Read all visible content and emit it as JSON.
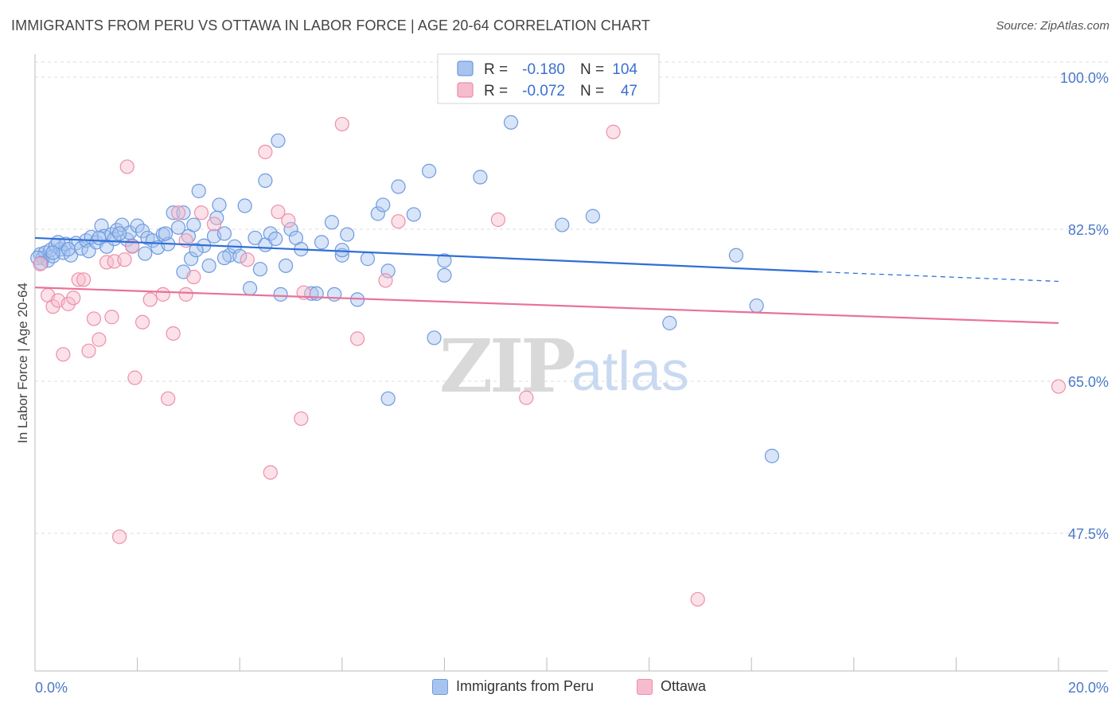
{
  "title": "IMMIGRANTS FROM PERU VS OTTAWA IN LABOR FORCE | AGE 20-64 CORRELATION CHART",
  "source": "Source: ZipAtlas.com",
  "watermark": {
    "zip": "ZIP",
    "atlas": "atlas"
  },
  "legend_box": [
    {
      "r_label": "R =",
      "r_value": "-0.180",
      "n_label": "N =",
      "n_value": "104"
    },
    {
      "r_label": "R =",
      "r_value": "-0.072",
      "n_label": "N =",
      "n_value": "47"
    }
  ],
  "bottom_legend": [
    "Immigrants from Peru",
    "Ottawa"
  ],
  "chart_data": {
    "type": "scatter",
    "ylabel": "In Labor Force | Age 20-64",
    "xlim": [
      0,
      20
    ],
    "ylim": [
      30,
      102
    ],
    "x_tick_labels": [
      {
        "value": 0,
        "label": "0.0%"
      },
      {
        "value": 20,
        "label": "20.0%"
      }
    ],
    "y_ticks": [
      {
        "value": 100,
        "label": "100.0%"
      },
      {
        "value": 82.5,
        "label": "82.5%"
      },
      {
        "value": 65,
        "label": "65.0%"
      },
      {
        "value": 47.5,
        "label": "47.5%"
      }
    ],
    "colors": {
      "blue_fill": "#a8c4ee",
      "blue_stroke": "#6d9be0",
      "blue_line": "#2f6fd6",
      "pink_fill": "#f6bccd",
      "pink_stroke": "#ee8fab",
      "pink_line": "#e8729a"
    },
    "series": [
      {
        "name": "Immigrants from Peru",
        "color": "#6d9be0",
        "trend": {
          "x": [
            0,
            15.3
          ],
          "y": [
            81.5,
            77.6
          ],
          "dash_to": [
            20,
            76.5
          ]
        },
        "points": [
          [
            0.1,
            79.6
          ],
          [
            0.15,
            79.2
          ],
          [
            0.2,
            79.8
          ],
          [
            0.25,
            78.9
          ],
          [
            0.3,
            80.1
          ],
          [
            0.35,
            79.4
          ],
          [
            0.4,
            80.6
          ],
          [
            0.5,
            80.2
          ],
          [
            0.55,
            79.8
          ],
          [
            0.6,
            80.8
          ],
          [
            0.7,
            79.5
          ],
          [
            0.8,
            80.9
          ],
          [
            0.9,
            80.3
          ],
          [
            1.0,
            81.2
          ],
          [
            1.05,
            80.0
          ],
          [
            1.1,
            81.6
          ],
          [
            1.2,
            81.0
          ],
          [
            1.3,
            82.9
          ],
          [
            1.35,
            81.7
          ],
          [
            1.4,
            80.5
          ],
          [
            1.5,
            81.9
          ],
          [
            1.55,
            81.4
          ],
          [
            1.6,
            82.4
          ],
          [
            1.7,
            83.0
          ],
          [
            1.8,
            81.3
          ],
          [
            1.85,
            82.1
          ],
          [
            1.9,
            80.6
          ],
          [
            2.0,
            82.9
          ],
          [
            2.1,
            82.3
          ],
          [
            2.2,
            81.5
          ],
          [
            2.3,
            81.2
          ],
          [
            2.4,
            80.4
          ],
          [
            2.5,
            81.9
          ],
          [
            2.6,
            80.8
          ],
          [
            2.7,
            84.4
          ],
          [
            2.8,
            82.7
          ],
          [
            2.9,
            77.6
          ],
          [
            3.0,
            81.7
          ],
          [
            3.05,
            79.1
          ],
          [
            3.1,
            83.0
          ],
          [
            3.2,
            86.9
          ],
          [
            3.3,
            80.6
          ],
          [
            3.4,
            78.3
          ],
          [
            3.5,
            81.7
          ],
          [
            3.6,
            85.3
          ],
          [
            3.7,
            82.0
          ],
          [
            3.8,
            79.5
          ],
          [
            3.9,
            80.5
          ],
          [
            4.0,
            79.4
          ],
          [
            4.1,
            85.2
          ],
          [
            4.2,
            75.7
          ],
          [
            4.3,
            81.5
          ],
          [
            4.4,
            77.9
          ],
          [
            4.5,
            80.7
          ],
          [
            4.6,
            82.0
          ],
          [
            4.7,
            81.4
          ],
          [
            4.8,
            75.0
          ],
          [
            4.9,
            78.3
          ],
          [
            5.0,
            82.5
          ],
          [
            5.1,
            81.5
          ],
          [
            5.2,
            80.2
          ],
          [
            5.4,
            75.1
          ],
          [
            5.5,
            75.1
          ],
          [
            5.8,
            83.3
          ],
          [
            6.0,
            79.5
          ],
          [
            6.1,
            81.9
          ],
          [
            6.3,
            74.4
          ],
          [
            6.5,
            79.1
          ],
          [
            6.7,
            84.3
          ],
          [
            6.8,
            85.3
          ],
          [
            6.9,
            77.7
          ],
          [
            7.1,
            87.4
          ],
          [
            7.4,
            84.2
          ],
          [
            7.7,
            89.2
          ],
          [
            7.8,
            70.0
          ],
          [
            8.0,
            78.9
          ],
          [
            8.7,
            88.5
          ],
          [
            9.3,
            94.8
          ],
          [
            10.3,
            83.0
          ],
          [
            10.9,
            84.0
          ],
          [
            12.4,
            71.7
          ],
          [
            13.7,
            79.5
          ],
          [
            14.1,
            73.7
          ],
          [
            14.4,
            56.4
          ],
          [
            5.6,
            81.0
          ],
          [
            4.75,
            92.7
          ],
          [
            4.5,
            88.1
          ],
          [
            3.55,
            83.8
          ],
          [
            2.9,
            84.4
          ],
          [
            1.65,
            82.0
          ],
          [
            0.45,
            81.0
          ],
          [
            0.65,
            80.2
          ],
          [
            1.25,
            81.5
          ],
          [
            2.15,
            79.7
          ],
          [
            3.7,
            79.2
          ],
          [
            5.85,
            75.0
          ],
          [
            6.9,
            63.0
          ],
          [
            3.15,
            80.1
          ],
          [
            2.55,
            82.0
          ],
          [
            0.35,
            79.8
          ],
          [
            0.05,
            79.2
          ],
          [
            0.12,
            78.6
          ],
          [
            8.0,
            77.2
          ],
          [
            6.0,
            80.1
          ]
        ]
      },
      {
        "name": "Ottawa",
        "color": "#ee8fab",
        "trend": {
          "x": [
            0,
            20
          ],
          "y": [
            75.8,
            71.7
          ]
        },
        "points": [
          [
            0.1,
            78.5
          ],
          [
            0.25,
            74.9
          ],
          [
            0.35,
            73.6
          ],
          [
            0.45,
            74.3
          ],
          [
            0.55,
            68.1
          ],
          [
            0.65,
            73.9
          ],
          [
            0.75,
            74.6
          ],
          [
            0.85,
            76.7
          ],
          [
            0.95,
            76.7
          ],
          [
            1.05,
            68.5
          ],
          [
            1.15,
            72.2
          ],
          [
            1.25,
            69.8
          ],
          [
            1.4,
            78.7
          ],
          [
            1.55,
            78.8
          ],
          [
            1.75,
            79.0
          ],
          [
            1.8,
            89.7
          ],
          [
            1.9,
            80.5
          ],
          [
            1.95,
            65.4
          ],
          [
            2.1,
            71.8
          ],
          [
            2.25,
            74.4
          ],
          [
            2.5,
            75.0
          ],
          [
            2.6,
            63.0
          ],
          [
            2.7,
            70.5
          ],
          [
            2.8,
            84.4
          ],
          [
            2.95,
            81.2
          ],
          [
            3.1,
            77.0
          ],
          [
            3.25,
            84.4
          ],
          [
            3.5,
            83.1
          ],
          [
            4.15,
            79.0
          ],
          [
            4.5,
            91.4
          ],
          [
            4.6,
            54.5
          ],
          [
            4.75,
            84.5
          ],
          [
            4.95,
            83.5
          ],
          [
            5.2,
            60.7
          ],
          [
            5.25,
            75.2
          ],
          [
            6.0,
            94.6
          ],
          [
            6.3,
            69.9
          ],
          [
            6.85,
            76.6
          ],
          [
            7.1,
            83.4
          ],
          [
            9.05,
            83.6
          ],
          [
            9.6,
            63.1
          ],
          [
            11.3,
            93.7
          ],
          [
            12.95,
            39.9
          ],
          [
            20.0,
            64.4
          ],
          [
            1.65,
            47.1
          ],
          [
            2.95,
            75.0
          ],
          [
            1.5,
            72.4
          ]
        ]
      }
    ]
  }
}
